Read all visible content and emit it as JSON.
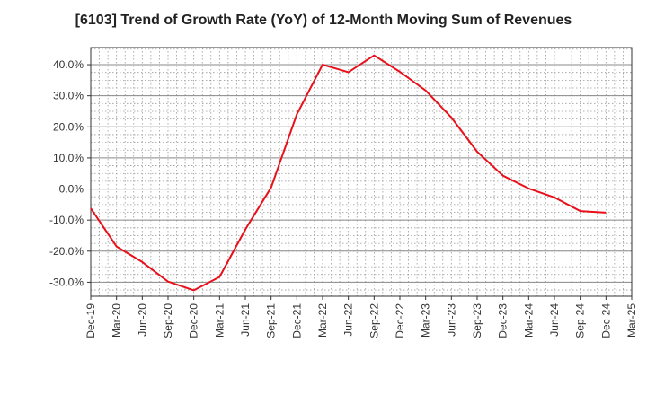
{
  "chart_data": {
    "type": "line",
    "title": "[6103]  Trend of Growth Rate (YoY) of 12-Month Moving Sum of Revenues",
    "xlabel": "",
    "ylabel": "",
    "grid": true,
    "ylim": [
      -34.5,
      45.5
    ],
    "yticks": [
      -30,
      -20,
      -10,
      0,
      10,
      20,
      30,
      40
    ],
    "ytick_labels": [
      "-30.0%",
      "-20.0%",
      "-10.0%",
      "0.0%",
      "10.0%",
      "20.0%",
      "30.0%",
      "40.0%"
    ],
    "x_tick_labels": [
      "Dec-19",
      "Mar-20",
      "Jun-20",
      "Sep-20",
      "Dec-20",
      "Mar-21",
      "Jun-21",
      "Sep-21",
      "Dec-21",
      "Mar-22",
      "Jun-22",
      "Sep-22",
      "Dec-22",
      "Mar-23",
      "Jun-23",
      "Sep-23",
      "Dec-23",
      "Mar-24",
      "Jun-24",
      "Sep-24",
      "Dec-24",
      "Mar-25"
    ],
    "series": [
      {
        "color": "#e8101a",
        "values": [
          [
            "Dec-19",
            -6.2
          ],
          [
            "Mar-20",
            -18.5
          ],
          [
            "Jun-20",
            -23.5
          ],
          [
            "Sep-20",
            -29.8
          ],
          [
            "Dec-20",
            -32.6
          ],
          [
            "Mar-21",
            -28.3
          ],
          [
            "Jun-21",
            -13.0
          ],
          [
            "Sep-21",
            0.5
          ],
          [
            "Dec-21",
            24.0
          ],
          [
            "Mar-22",
            40.0
          ],
          [
            "Jun-22",
            37.6
          ],
          [
            "Sep-22",
            43.0
          ],
          [
            "Dec-22",
            37.7
          ],
          [
            "Mar-23",
            31.7
          ],
          [
            "Jun-23",
            23.0
          ],
          [
            "Sep-23",
            12.0
          ],
          [
            "Dec-23",
            4.3
          ],
          [
            "Mar-24",
            0.2
          ],
          [
            "Jun-24",
            -2.7
          ],
          [
            "Sep-24",
            -7.1
          ],
          [
            "Dec-24",
            -7.6
          ]
        ]
      }
    ]
  }
}
